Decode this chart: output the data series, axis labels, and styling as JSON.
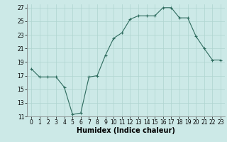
{
  "x": [
    0,
    1,
    2,
    3,
    4,
    5,
    6,
    7,
    8,
    9,
    10,
    11,
    12,
    13,
    14,
    15,
    16,
    17,
    18,
    19,
    20,
    21,
    22,
    23
  ],
  "y": [
    18.0,
    16.8,
    16.8,
    16.8,
    15.3,
    11.3,
    11.5,
    16.8,
    17.0,
    20.0,
    22.5,
    23.3,
    25.3,
    25.8,
    25.8,
    25.8,
    27.0,
    27.0,
    25.5,
    25.5,
    22.8,
    21.0,
    19.3,
    19.3
  ],
  "xlim": [
    -0.5,
    23.5
  ],
  "ylim": [
    11,
    27.5
  ],
  "yticks": [
    11,
    13,
    15,
    17,
    19,
    21,
    23,
    25,
    27
  ],
  "xticks": [
    0,
    1,
    2,
    3,
    4,
    5,
    6,
    7,
    8,
    9,
    10,
    11,
    12,
    13,
    14,
    15,
    16,
    17,
    18,
    19,
    20,
    21,
    22,
    23
  ],
  "xlabel": "Humidex (Indice chaleur)",
  "line_color": "#2e6b5e",
  "marker": "+",
  "bg_color": "#cce9e7",
  "grid_color": "#afd4d0",
  "tick_fontsize": 5.5,
  "xlabel_fontsize": 7
}
